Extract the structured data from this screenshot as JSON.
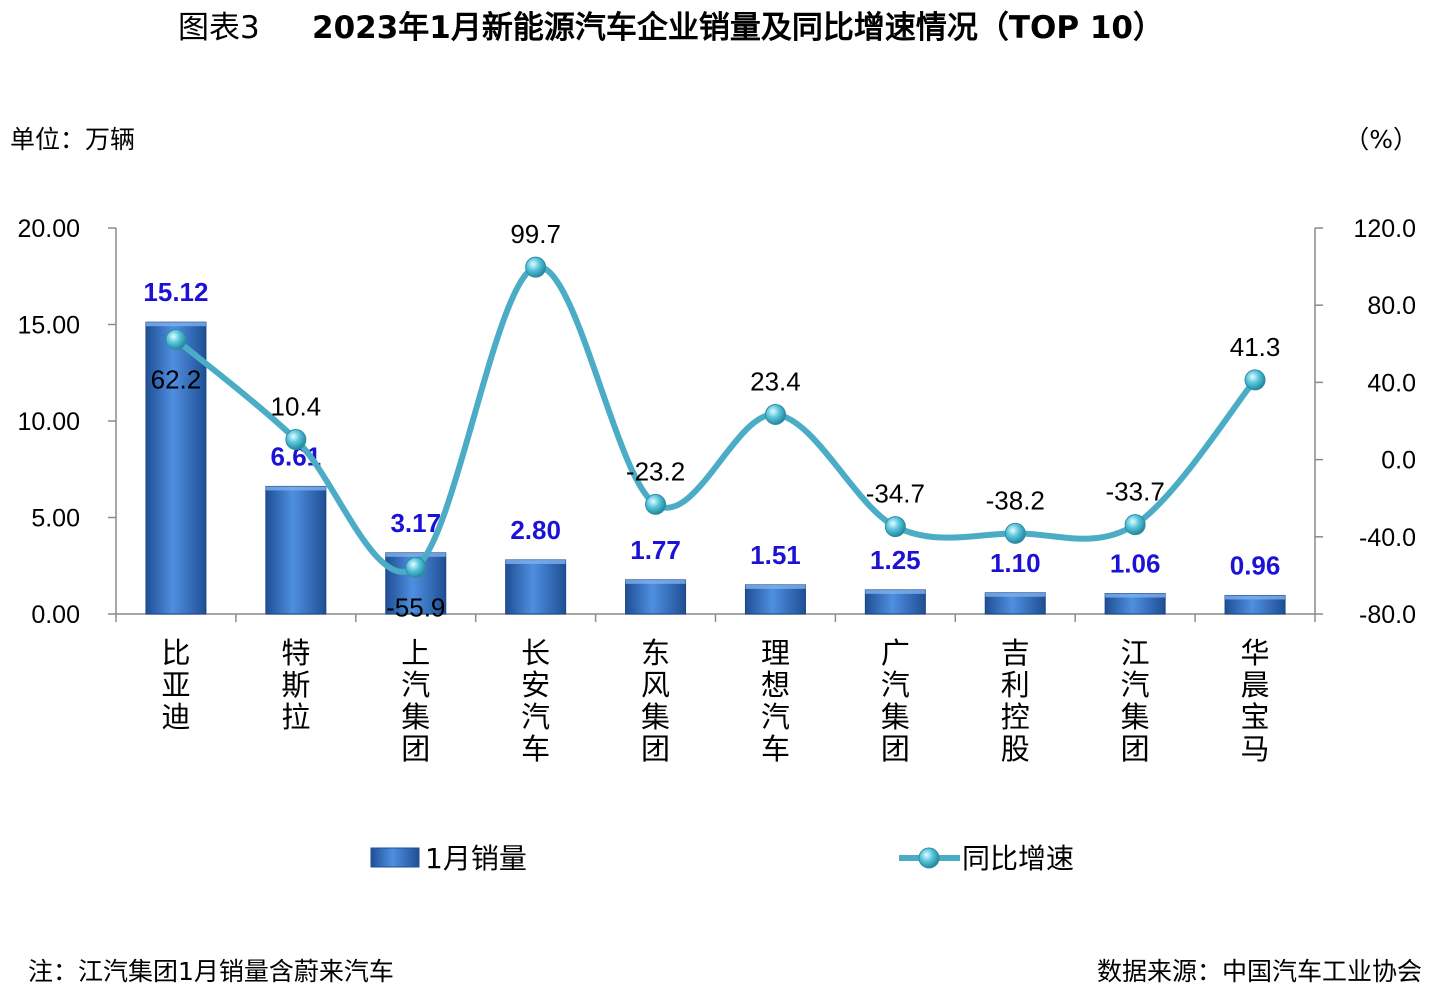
{
  "title": {
    "prefix": "图表3",
    "main": "2023年1月新能源汽车企业销量及同比增速情况（TOP 10）"
  },
  "left_unit": "单位：万辆",
  "right_unit": "（%）",
  "chart_data": {
    "type": "bar",
    "categories": [
      "比亚迪",
      "特斯拉",
      "上汽集团",
      "长安汽车",
      "东风集团",
      "理想汽车",
      "广汽集团",
      "吉利控股",
      "江汽集团",
      "华晨宝马"
    ],
    "series": [
      {
        "name": "1月销量",
        "type": "bar",
        "axis": "left",
        "values": [
          15.12,
          6.61,
          3.17,
          2.8,
          1.77,
          1.51,
          1.25,
          1.1,
          1.06,
          0.96
        ],
        "labels": [
          "15.12",
          "6.61",
          "3.17",
          "2.80",
          "1.77",
          "1.51",
          "1.25",
          "1.10",
          "1.06",
          "0.96"
        ],
        "color": "#2e6bc0",
        "label_color": "#1c12d6"
      },
      {
        "name": "同比增速",
        "type": "line",
        "axis": "right",
        "values": [
          62.2,
          10.4,
          -55.9,
          99.7,
          -23.2,
          23.4,
          -34.7,
          -38.2,
          -33.7,
          41.3
        ],
        "labels": [
          "62.2",
          "10.4",
          "-55.9",
          "99.7",
          "-23.2",
          "23.4",
          "-34.7",
          "-38.2",
          "-33.7",
          "41.3"
        ],
        "color": "#4bacc6"
      }
    ],
    "y_left": {
      "range": [
        0,
        20
      ],
      "ticks": [
        "0.00",
        "5.00",
        "10.00",
        "15.00",
        "20.00"
      ],
      "tick_values": [
        0,
        5,
        10,
        15,
        20
      ]
    },
    "y_right": {
      "range": [
        -80,
        120
      ],
      "ticks": [
        "-80.0",
        "-40.0",
        "0.0",
        "40.0",
        "80.0",
        "120.0"
      ],
      "tick_values": [
        -80,
        -40,
        0,
        40,
        80,
        120
      ]
    },
    "grid": false,
    "legend_position": "bottom"
  },
  "footnote": "注：江汽集团1月销量含蔚来汽车",
  "source": "数据来源：中国汽车工业协会"
}
